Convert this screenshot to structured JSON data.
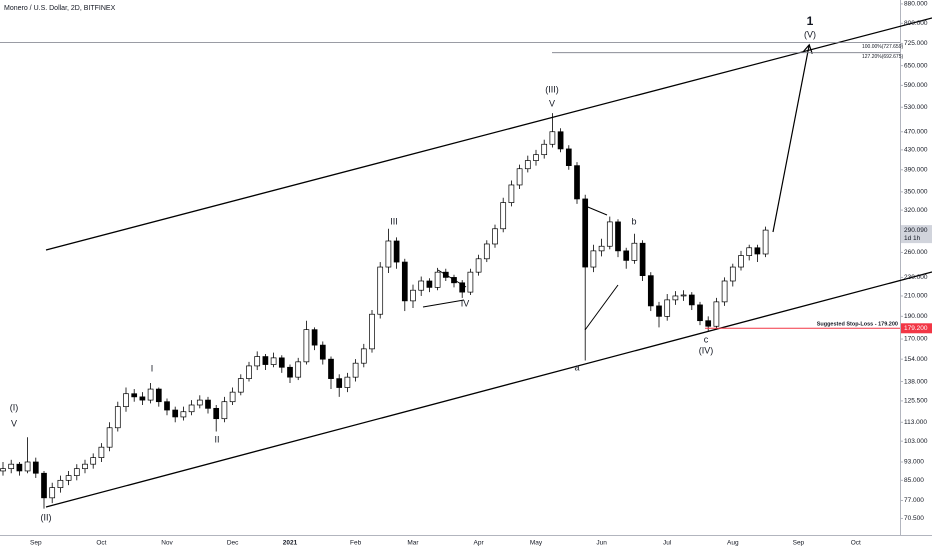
{
  "chart_data": {
    "type": "candlestick",
    "title": "Monero / U.S. Dollar, 2D, BITFINEX",
    "log_scale": true,
    "categories": [
      null,
      null,
      null,
      null,
      "Sep",
      null,
      null,
      null,
      null,
      null,
      null,
      null,
      "Oct",
      null,
      null,
      null,
      null,
      null,
      null,
      null,
      "Nov",
      null,
      null,
      null,
      null,
      null,
      null,
      null,
      "Dec",
      null,
      null,
      null,
      null,
      null,
      null,
      "2021",
      null,
      null,
      null,
      null,
      null,
      null,
      null,
      "Feb",
      null,
      null,
      null,
      null,
      null,
      null,
      "Mar",
      null,
      null,
      null,
      null,
      null,
      null,
      null,
      "Apr",
      null,
      null,
      null,
      null,
      null,
      null,
      "May",
      null,
      null,
      null,
      null,
      null,
      null,
      null,
      "Jun",
      null,
      null,
      null,
      null,
      null,
      null,
      null,
      "Jul",
      null,
      null,
      null,
      null,
      null,
      null,
      null,
      "Aug",
      null,
      null,
      null,
      null,
      null,
      null,
      null,
      "Sep",
      null,
      null,
      null,
      null,
      null,
      null,
      "Oct"
    ],
    "open": [
      89,
      90,
      92,
      89,
      93,
      88,
      78,
      82,
      85,
      87,
      90,
      92,
      95,
      100,
      110,
      122,
      130,
      128,
      126,
      133,
      125,
      120,
      116,
      119,
      123,
      126,
      121,
      115,
      125,
      131,
      140,
      149,
      156,
      150,
      155,
      148,
      141,
      152,
      178,
      165,
      154,
      140,
      134,
      141,
      151,
      162,
      192,
      242,
      275,
      248,
      205,
      216,
      226,
      219,
      236,
      230,
      224,
      214,
      236,
      252,
      271,
      292,
      332,
      362,
      392,
      408,
      420,
      442,
      470,
      432,
      398,
      338,
      242,
      262,
      268,
      302,
      262,
      250,
      272,
      232,
      200,
      190,
      206,
      210,
      211,
      201,
      186,
      181,
      204,
      226,
      242,
      256,
      266,
      258,
      null,
      null,
      null,
      null,
      null,
      null,
      null,
      null,
      null,
      null,
      null
    ],
    "high": [
      93,
      94,
      93,
      105,
      95,
      89,
      84,
      87,
      89,
      92,
      94,
      97,
      102,
      113,
      125,
      134,
      133,
      131,
      137,
      134,
      127,
      122,
      122,
      126,
      129,
      128,
      123,
      128,
      134,
      143,
      152,
      160,
      158,
      159,
      157,
      150,
      155,
      186,
      180,
      168,
      156,
      143,
      144,
      154,
      166,
      196,
      248,
      292,
      280,
      252,
      222,
      231,
      229,
      241,
      240,
      233,
      227,
      240,
      257,
      276,
      298,
      340,
      370,
      400,
      418,
      430,
      452,
      515,
      478,
      440,
      405,
      345,
      270,
      278,
      310,
      306,
      266,
      285,
      276,
      236,
      204,
      212,
      215,
      216,
      214,
      204,
      190,
      208,
      230,
      246,
      262,
      270,
      270,
      295,
      null,
      null,
      null,
      null,
      null,
      null,
      null,
      null,
      null,
      null,
      null
    ],
    "low": [
      87,
      88,
      87,
      88,
      86,
      74,
      76,
      80,
      83,
      85,
      88,
      90,
      93,
      98,
      108,
      119,
      125,
      123,
      124,
      122,
      117,
      113,
      114,
      117,
      121,
      118,
      108,
      113,
      123,
      129,
      138,
      146,
      146,
      148,
      144,
      137,
      139,
      150,
      161,
      150,
      133,
      128,
      131,
      138,
      148,
      159,
      188,
      235,
      240,
      195,
      198,
      210,
      214,
      216,
      226,
      219,
      208,
      211,
      232,
      248,
      266,
      287,
      326,
      355,
      385,
      398,
      412,
      435,
      425,
      390,
      330,
      153,
      236,
      255,
      264,
      254,
      240,
      246,
      226,
      195,
      180,
      186,
      201,
      205,
      196,
      182,
      177,
      178,
      200,
      220,
      238,
      250,
      248,
      254,
      null,
      null,
      null,
      null,
      null,
      null,
      null,
      null,
      null,
      null,
      null
    ],
    "close": [
      90,
      92,
      89,
      93,
      88,
      78,
      82,
      85,
      87,
      90,
      92,
      95,
      100,
      110,
      122,
      130,
      128,
      126,
      133,
      125,
      120,
      116,
      119,
      123,
      126,
      121,
      115,
      125,
      131,
      140,
      149,
      156,
      150,
      155,
      148,
      141,
      152,
      178,
      165,
      154,
      140,
      134,
      141,
      151,
      162,
      192,
      242,
      275,
      248,
      205,
      216,
      226,
      219,
      236,
      230,
      224,
      214,
      236,
      252,
      271,
      292,
      332,
      362,
      392,
      408,
      420,
      442,
      470,
      432,
      398,
      338,
      242,
      262,
      268,
      302,
      262,
      250,
      272,
      232,
      200,
      190,
      206,
      210,
      211,
      201,
      186,
      181,
      204,
      226,
      242,
      256,
      266,
      258,
      290.09,
      null,
      null,
      null,
      null,
      null,
      null,
      null,
      null,
      null,
      null,
      null
    ],
    "up_color": "#ffffff",
    "down_color": "#000000",
    "ylim": [
      65,
      897
    ],
    "yticks": [
      {
        "value": 880,
        "label": "880.000"
      },
      {
        "value": 800,
        "label": "800.000"
      },
      {
        "value": 725,
        "label": "725.000"
      },
      {
        "value": 650,
        "label": "650.000"
      },
      {
        "value": 590,
        "label": "590.000"
      },
      {
        "value": 530,
        "label": "530.000"
      },
      {
        "value": 470,
        "label": "470.000"
      },
      {
        "value": 430,
        "label": "430.000"
      },
      {
        "value": 390,
        "label": "390.000"
      },
      {
        "value": 350,
        "label": "350.000"
      },
      {
        "value": 320,
        "label": "320.000"
      },
      {
        "value": 260,
        "label": "260.000"
      },
      {
        "value": 230,
        "label": "230.000"
      },
      {
        "value": 210,
        "label": "210.000"
      },
      {
        "value": 190,
        "label": "190.000"
      },
      {
        "value": 170,
        "label": "170.000"
      },
      {
        "value": 154,
        "label": "154.000"
      },
      {
        "value": 138,
        "label": "138.000"
      },
      {
        "value": 125.5,
        "label": "125.500"
      },
      {
        "value": 113,
        "label": "113.000"
      },
      {
        "value": 103,
        "label": "103.000"
      },
      {
        "value": 93,
        "label": "93.000"
      },
      {
        "value": 85,
        "label": "85.000"
      },
      {
        "value": 77,
        "label": "77.000"
      },
      {
        "value": 70.5,
        "label": "70.500"
      }
    ],
    "levels": [
      {
        "value": 727.659,
        "label": "100.00%(727.659)"
      },
      {
        "value": 692.675,
        "label": "127.20%(692.675)"
      }
    ],
    "stop_loss": {
      "value": 179.2,
      "label": "Suggested Stop-Loss - 179.200",
      "value_label": "179.200"
    },
    "last_price": {
      "value": 290.09,
      "value_label": "290.090",
      "countdown": "1d 1h"
    },
    "annotations": [
      "(I)",
      "V",
      "(II)",
      "I",
      "II",
      "III",
      "IV",
      "(III)",
      "V",
      "a",
      "b",
      "c",
      "(IV)",
      "1",
      "(V)"
    ]
  }
}
